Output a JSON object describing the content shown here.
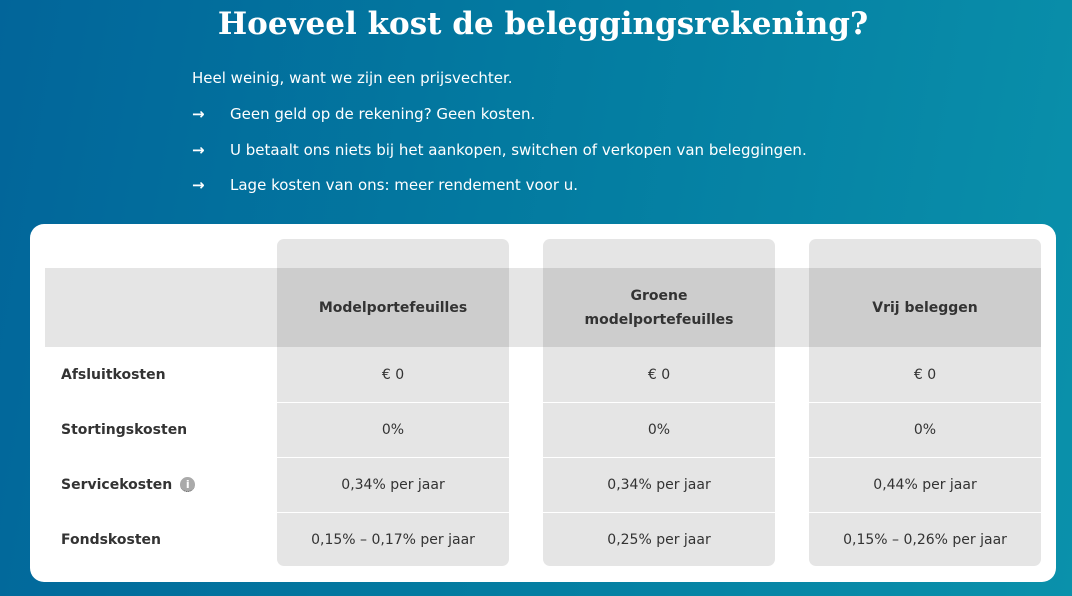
{
  "title": "Hoeveel kost de beleggingsrekening?",
  "intro": "Heel weinig, want we zijn een prijsvechter.",
  "bullets": [
    "Geen geld op de rekening? Geen kosten.",
    "U betaalt ons niets bij het aankopen, switchen of verkopen van beleggingen.",
    "Lage kosten van ons: meer rendement voor u."
  ],
  "bullet_icon": "arrow-right-icon",
  "table": {
    "columns": [
      "Modelportefeuilles",
      "Groene modelportefeuilles",
      "Vrij beleggen"
    ],
    "rows": [
      {
        "label": "Afsluitkosten",
        "values": [
          "€ 0",
          "€ 0",
          "€ 0"
        ]
      },
      {
        "label": "Stortingskosten",
        "values": [
          "0%",
          "0%",
          "0%"
        ]
      },
      {
        "label": "Servicekosten",
        "info_icon": "i",
        "values": [
          "0,34% per jaar",
          "0,34% per jaar",
          "0,44% per jaar"
        ]
      },
      {
        "label": "Fondskosten",
        "values": [
          "0,15% – 0,17% per jaar",
          "0,25% per jaar",
          "0,15% – 0,26% per jaar"
        ]
      }
    ]
  }
}
